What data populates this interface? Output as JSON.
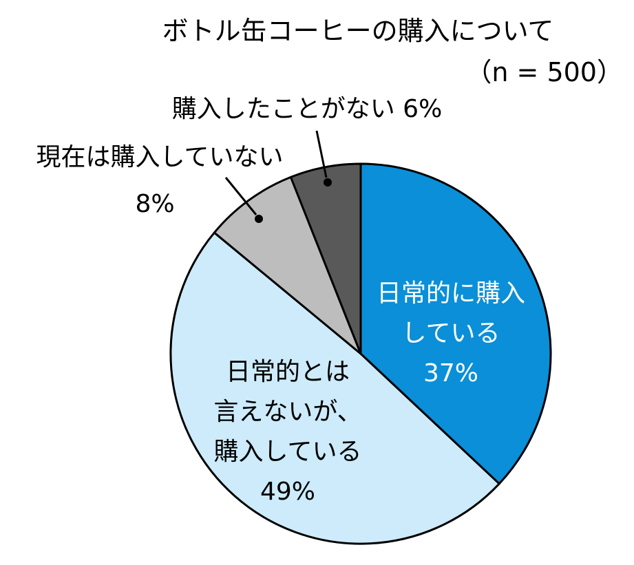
{
  "chart_data": {
    "type": "pie",
    "title": "ボトル缶コーヒーの購入について",
    "subtitle": "（n = 500）",
    "start_angle_deg": 0,
    "direction": "clockwise",
    "slices": [
      {
        "key": "daily",
        "label_lines": [
          "日常的に購入",
          "している"
        ],
        "value_label": "37%",
        "value": 37,
        "color": "#0A8FD8",
        "text_color": "#ffffff"
      },
      {
        "key": "not_daily",
        "label_lines": [
          "日常的とは",
          "言えないが、",
          "購入している"
        ],
        "value_label": "49%",
        "value": 49,
        "color": "#CDEBFA",
        "text_color": "#000000"
      },
      {
        "key": "stopped",
        "label_lines": [
          "現在は購入していない"
        ],
        "value_label": "8%",
        "value": 8,
        "color": "#BDBDBD",
        "text_color": "#000000"
      },
      {
        "key": "never",
        "label_lines": [
          "購入したことがない 6%"
        ],
        "value_label": "",
        "value": 6,
        "color": "#595959",
        "text_color": "#000000"
      }
    ]
  }
}
